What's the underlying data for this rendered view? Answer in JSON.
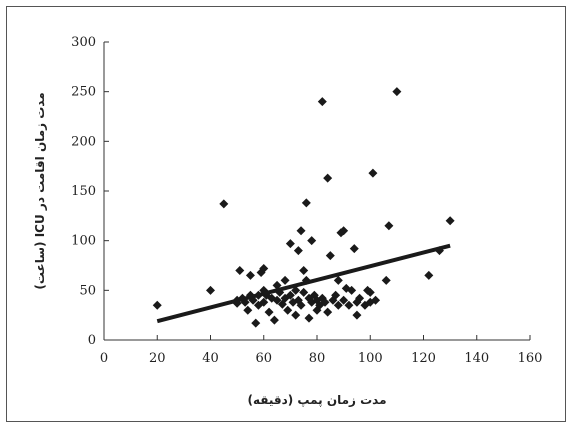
{
  "chart_data": {
    "type": "scatter",
    "title": "",
    "xlabel": "مدت زمان پمپ (دقیقه)",
    "ylabel": "مدت زمان اقامت در ICU (ساعت)",
    "xlim": [
      0,
      160
    ],
    "ylim": [
      0,
      300
    ],
    "x_ticks": [
      "0",
      "20",
      "40",
      "60",
      "80",
      "100",
      "120",
      "140",
      "160"
    ],
    "y_ticks": [
      "0",
      "50",
      "100",
      "150",
      "200",
      "250",
      "300"
    ],
    "grid": false,
    "marker": "diamond",
    "colors": {
      "points": "#1a1a1a",
      "line": "#1a1a1a",
      "axes": "#333333"
    },
    "series": [
      {
        "points": [
          [
            20,
            35
          ],
          [
            40,
            50
          ],
          [
            45,
            137
          ],
          [
            50,
            40
          ],
          [
            50,
            37
          ],
          [
            51,
            70
          ],
          [
            52,
            42
          ],
          [
            53,
            38
          ],
          [
            54,
            30
          ],
          [
            55,
            65
          ],
          [
            55,
            45
          ],
          [
            56,
            40
          ],
          [
            57,
            17
          ],
          [
            58,
            45
          ],
          [
            58,
            35
          ],
          [
            59,
            68
          ],
          [
            60,
            72
          ],
          [
            60,
            50
          ],
          [
            60,
            38
          ],
          [
            61,
            45
          ],
          [
            62,
            28
          ],
          [
            63,
            42
          ],
          [
            64,
            20
          ],
          [
            65,
            40
          ],
          [
            65,
            55
          ],
          [
            66,
            48
          ],
          [
            67,
            36
          ],
          [
            68,
            60
          ],
          [
            68,
            42
          ],
          [
            69,
            30
          ],
          [
            70,
            45
          ],
          [
            70,
            97
          ],
          [
            71,
            38
          ],
          [
            72,
            50
          ],
          [
            72,
            25
          ],
          [
            73,
            90
          ],
          [
            73,
            40
          ],
          [
            74,
            110
          ],
          [
            74,
            35
          ],
          [
            75,
            48
          ],
          [
            75,
            70
          ],
          [
            76,
            138
          ],
          [
            76,
            60
          ],
          [
            77,
            42
          ],
          [
            77,
            22
          ],
          [
            78,
            38
          ],
          [
            78,
            100
          ],
          [
            79,
            45
          ],
          [
            80,
            30
          ],
          [
            80,
            40
          ],
          [
            81,
            35
          ],
          [
            82,
            240
          ],
          [
            82,
            42
          ],
          [
            83,
            38
          ],
          [
            84,
            163
          ],
          [
            84,
            28
          ],
          [
            85,
            85
          ],
          [
            86,
            40
          ],
          [
            87,
            45
          ],
          [
            88,
            60
          ],
          [
            88,
            35
          ],
          [
            89,
            108
          ],
          [
            90,
            110
          ],
          [
            90,
            40
          ],
          [
            91,
            52
          ],
          [
            92,
            35
          ],
          [
            93,
            50
          ],
          [
            94,
            92
          ],
          [
            95,
            38
          ],
          [
            95,
            25
          ],
          [
            96,
            42
          ],
          [
            98,
            35
          ],
          [
            99,
            50
          ],
          [
            100,
            48
          ],
          [
            100,
            38
          ],
          [
            101,
            168
          ],
          [
            102,
            40
          ],
          [
            106,
            60
          ],
          [
            107,
            115
          ],
          [
            110,
            250
          ],
          [
            122,
            65
          ],
          [
            126,
            90
          ],
          [
            130,
            120
          ]
        ]
      }
    ],
    "trendline": {
      "x": [
        20,
        130
      ],
      "y": [
        19,
        95
      ]
    }
  }
}
